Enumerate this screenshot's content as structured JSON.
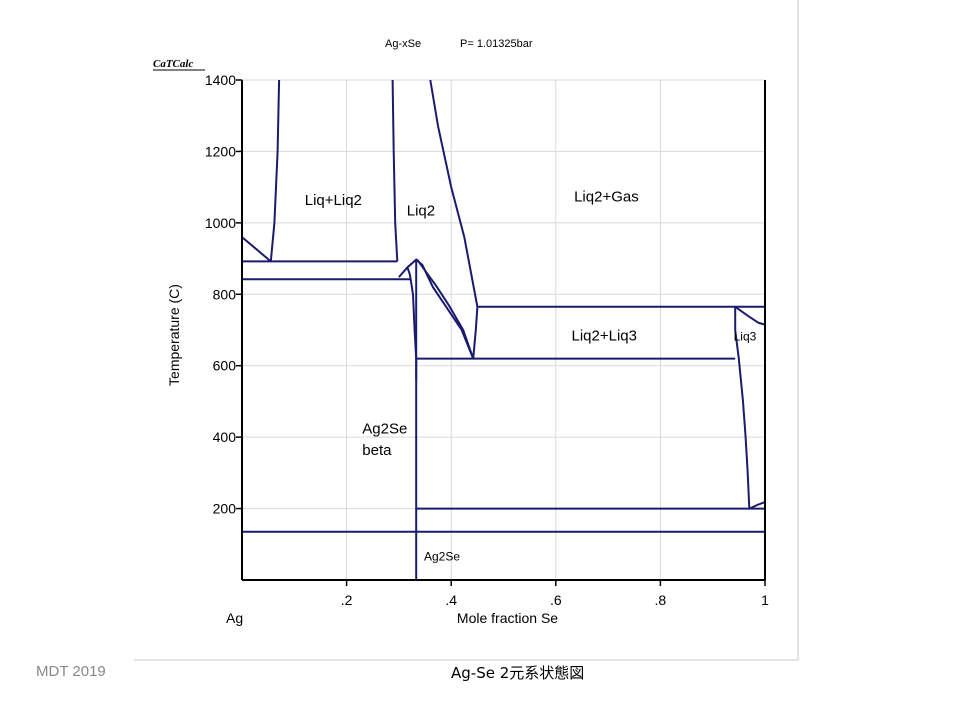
{
  "header": {
    "title": "Ag-xSe",
    "pressure": "P= 1.01325bar",
    "logo": "CaTCalc"
  },
  "footer": {
    "credit": "MDT   2019",
    "caption": "Ag-Se  2元系状態図"
  },
  "chart_data": {
    "type": "line",
    "title": "Ag-xSe     P= 1.01325bar",
    "xlabel": "Mole fraction  Se",
    "ylabel": "Temperature (C)",
    "xlim": [
      0,
      1
    ],
    "ylim": [
      0,
      1400
    ],
    "x_ticks": [
      {
        "value": 0.2,
        "label": ".2"
      },
      {
        "value": 0.4,
        "label": ".4"
      },
      {
        "value": 0.6,
        "label": ".6"
      },
      {
        "value": 0.8,
        "label": ".8"
      },
      {
        "value": 1.0,
        "label": "1"
      }
    ],
    "x_end_label": "Ag",
    "y_ticks": [
      200,
      400,
      600,
      800,
      1000,
      1200,
      1400
    ],
    "grid": true,
    "region_labels": [
      {
        "text": "Liq+Liq2",
        "x": 0.12,
        "y": 1050
      },
      {
        "text": "Liq2",
        "x": 0.315,
        "y": 1020
      },
      {
        "text": "Liq2+Gas",
        "x": 0.635,
        "y": 1060
      },
      {
        "text": "Liq2+Liq3",
        "x": 0.63,
        "y": 670
      },
      {
        "text": "Liq3",
        "x": 0.94,
        "y": 670
      },
      {
        "text": "Ag2Se",
        "x": 0.23,
        "y": 410
      },
      {
        "text": "beta",
        "x": 0.23,
        "y": 350
      },
      {
        "text": "Ag2Se",
        "x": 0.348,
        "y": 55
      }
    ],
    "series": [
      {
        "points": [
          [
            0.0,
            960
          ],
          [
            0.055,
            892
          ]
        ]
      },
      {
        "points": [
          [
            0.055,
            892
          ],
          [
            0.062,
            1000
          ],
          [
            0.068,
            1200
          ],
          [
            0.071,
            1400
          ]
        ]
      },
      {
        "points": [
          [
            0.0,
            892
          ],
          [
            0.297,
            892
          ]
        ]
      },
      {
        "points": [
          [
            0.297,
            892
          ],
          [
            0.293,
            1000
          ],
          [
            0.29,
            1200
          ],
          [
            0.288,
            1400
          ]
        ]
      },
      {
        "points": [
          [
            0.0,
            842
          ],
          [
            0.323,
            842
          ]
        ]
      },
      {
        "points": [
          [
            0.3,
            848
          ],
          [
            0.316,
            875
          ],
          [
            0.333,
            897
          ],
          [
            0.345,
            882
          ],
          [
            0.365,
            820
          ],
          [
            0.42,
            700
          ],
          [
            0.442,
            620
          ]
        ]
      },
      {
        "points": [
          [
            0.316,
            876
          ],
          [
            0.321,
            855
          ],
          [
            0.327,
            800
          ],
          [
            0.33,
            700
          ],
          [
            0.333,
            620
          ],
          [
            0.333,
            560
          ]
        ]
      },
      {
        "points": [
          [
            0.333,
            897
          ],
          [
            0.333,
            0
          ]
        ]
      },
      {
        "points": [
          [
            0.335,
            897
          ],
          [
            0.352,
            862
          ],
          [
            0.372,
            822
          ],
          [
            0.396,
            768
          ],
          [
            0.423,
            700
          ],
          [
            0.442,
            620
          ]
        ]
      },
      {
        "points": [
          [
            0.442,
            620
          ],
          [
            0.447,
            700
          ],
          [
            0.45,
            765
          ]
        ]
      },
      {
        "points": [
          [
            0.36,
            1400
          ],
          [
            0.375,
            1270
          ],
          [
            0.4,
            1100
          ],
          [
            0.425,
            960
          ],
          [
            0.45,
            765
          ]
        ]
      },
      {
        "points": [
          [
            0.45,
            765
          ],
          [
            1.0,
            765
          ]
        ]
      },
      {
        "points": [
          [
            0.333,
            620
          ],
          [
            0.943,
            620
          ]
        ]
      },
      {
        "points": [
          [
            0.943,
            765
          ],
          [
            0.967,
            740
          ],
          [
            0.988,
            720
          ],
          [
            1.0,
            715
          ]
        ]
      },
      {
        "points": [
          [
            0.943,
            765
          ],
          [
            0.943,
            700
          ],
          [
            0.95,
            620
          ],
          [
            0.958,
            500
          ],
          [
            0.963,
            400
          ],
          [
            0.967,
            300
          ],
          [
            0.97,
            200
          ]
        ]
      },
      {
        "points": [
          [
            0.333,
            200
          ],
          [
            1.0,
            200
          ]
        ]
      },
      {
        "points": [
          [
            0.97,
            200
          ],
          [
            0.985,
            210
          ],
          [
            1.0,
            218
          ]
        ]
      },
      {
        "points": [
          [
            0.0,
            135
          ],
          [
            1.0,
            135
          ]
        ]
      }
    ]
  }
}
